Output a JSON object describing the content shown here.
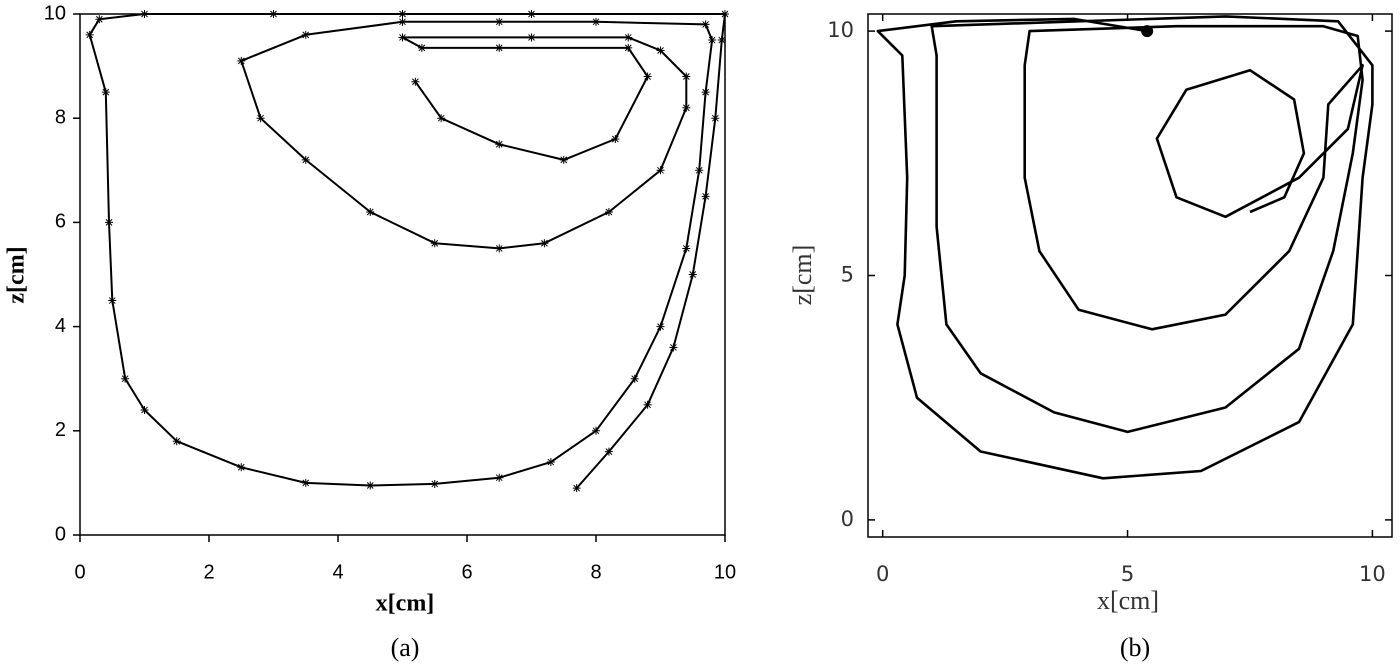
{
  "chart_data": [
    {
      "type": "line",
      "x_label": "x[cm]",
      "y_label": "z[cm]",
      "caption": "(a)",
      "xlim": [
        0,
        10
      ],
      "ylim": [
        0,
        10
      ],
      "xticks": [
        0,
        2,
        4,
        6,
        8,
        10
      ],
      "yticks": [
        0,
        2,
        4,
        6,
        8,
        10
      ],
      "color": "#000000",
      "markers": true,
      "x": [
        7.7,
        8.2,
        8.8,
        9.2,
        9.5,
        9.7,
        9.85,
        9.95,
        10,
        7,
        5,
        3,
        1,
        0.3,
        0.15,
        0.4,
        0.45,
        0.5,
        0.7,
        1,
        1.5,
        2.5,
        3.5,
        4.5,
        5.5,
        6.5,
        7.3,
        8,
        8.6,
        9,
        9.4,
        9.6,
        9.7,
        9.8,
        9.7,
        8,
        6.5,
        5,
        3.5,
        2.5,
        2.8,
        3.5,
        4.5,
        5.5,
        6.5,
        7.2,
        8.2,
        9,
        9.4,
        9.4,
        9,
        8.5,
        7,
        5,
        5.3,
        6.5,
        8.5,
        8.8,
        8.3,
        7.5,
        6.5,
        5.6,
        5.2
      ],
      "values": [
        0.9,
        1.6,
        2.5,
        3.6,
        5,
        6.5,
        8,
        9.5,
        10,
        10,
        10,
        10,
        10,
        9.9,
        9.6,
        8.5,
        6,
        4.5,
        3,
        2.4,
        1.8,
        1.3,
        1.0,
        0.95,
        0.98,
        1.1,
        1.4,
        2,
        3,
        4,
        5.5,
        7,
        8.5,
        9.5,
        9.8,
        9.85,
        9.85,
        9.85,
        9.6,
        9.1,
        8,
        7.2,
        6.2,
        5.6,
        5.5,
        5.6,
        6.2,
        7,
        8.2,
        8.8,
        9.3,
        9.55,
        9.55,
        9.55,
        9.35,
        9.35,
        9.35,
        8.8,
        7.6,
        7.2,
        7.5,
        8,
        8.7
      ]
    },
    {
      "type": "line",
      "x_label": "x[cm]",
      "y_label": "z[cm]",
      "caption": "(b)",
      "xlim": [
        -0.3,
        10.4
      ],
      "ylim": [
        -0.35,
        10.35
      ],
      "xticks": [
        0,
        5,
        10
      ],
      "yticks": [
        0,
        5,
        10
      ],
      "color": "#000000",
      "markers": false,
      "x": [
        5.4,
        3.9,
        1.5,
        -0.1,
        0.4,
        0.5,
        0.45,
        0.3,
        0.7,
        2,
        4.5,
        6.5,
        8.5,
        9.6,
        9.8,
        10,
        10,
        9.3,
        7,
        1,
        1.1,
        1.1,
        1.3,
        2,
        3.5,
        5,
        7,
        8.5,
        9.2,
        9.6,
        9.8,
        9.7,
        9,
        6,
        3,
        2.9,
        2.9,
        3.2,
        4,
        5.5,
        7,
        8.3,
        9,
        9.1,
        9.8,
        9.5,
        8.5,
        7,
        6,
        5.6,
        6.2,
        7.5,
        8.4,
        8.6,
        8.2,
        7.5
      ],
      "values": [
        10,
        10.25,
        10.2,
        10,
        9.5,
        7,
        5,
        4,
        2.5,
        1.4,
        0.85,
        1.0,
        2,
        4,
        7,
        8.5,
        9.3,
        10.2,
        10.3,
        10.1,
        9.5,
        6,
        4,
        3,
        2.2,
        1.8,
        2.3,
        3.5,
        5.5,
        7.5,
        9,
        9.9,
        10.1,
        10.1,
        10,
        9.3,
        7,
        5.5,
        4.3,
        3.9,
        4.2,
        5.5,
        7,
        8.5,
        9.3,
        8,
        7,
        6.2,
        6.6,
        7.8,
        8.8,
        9.2,
        8.6,
        7.5,
        6.6,
        6.3
      ]
    }
  ]
}
